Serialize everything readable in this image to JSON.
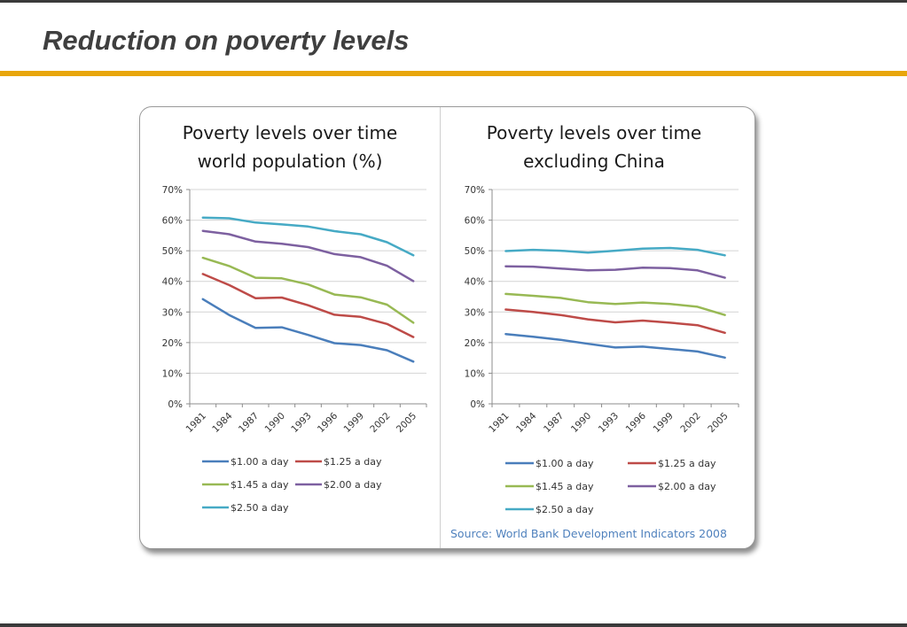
{
  "slide": {
    "title": "Reduction on poverty levels",
    "accent_color": "#e8a60c"
  },
  "source_note": "Source: World Bank Development Indicators 2008",
  "chart_data": [
    {
      "type": "line",
      "title": "Poverty levels over time world population (%)",
      "title_lines": [
        "Poverty levels over time",
        "world population (%)"
      ],
      "x": [
        "1981",
        "1984",
        "1987",
        "1990",
        "1993",
        "1996",
        "1999",
        "2002",
        "2005"
      ],
      "y_ticks": [
        "0%",
        "10%",
        "20%",
        "30%",
        "40%",
        "50%",
        "60%",
        "70%"
      ],
      "ylim": [
        0,
        70
      ],
      "grid": true,
      "legend_position": "bottom",
      "series": [
        {
          "name": "$1.00 a day",
          "color": "#4a7ebb",
          "values": [
            34.2,
            29,
            24.8,
            25,
            22.5,
            19.8,
            19.2,
            17.5,
            13.8
          ]
        },
        {
          "name": "$1.25 a day",
          "color": "#be4b48",
          "values": [
            42.4,
            38.8,
            34.5,
            34.7,
            32.2,
            29.1,
            28.4,
            26.1,
            21.8
          ]
        },
        {
          "name": "$1.45 a day",
          "color": "#98b954",
          "values": [
            47.7,
            45,
            41.2,
            41,
            39,
            35.7,
            34.8,
            32.4,
            26.5
          ]
        },
        {
          "name": "$2.00 a day",
          "color": "#7d60a0",
          "values": [
            56.5,
            55.4,
            53,
            52.3,
            51.2,
            48.9,
            47.9,
            45.1,
            40.1
          ]
        },
        {
          "name": "$2.50 a day",
          "color": "#46aac5",
          "values": [
            60.8,
            60.6,
            59.2,
            58.6,
            57.9,
            56.4,
            55.4,
            52.8,
            48.5
          ]
        }
      ]
    },
    {
      "type": "line",
      "title": "Poverty levels over time excluding China",
      "title_lines": [
        "Poverty levels over time",
        "excluding China"
      ],
      "x": [
        "1981",
        "1984",
        "1987",
        "1990",
        "1993",
        "1996",
        "1999",
        "2002",
        "2005"
      ],
      "y_ticks": [
        "0%",
        "10%",
        "20%",
        "30%",
        "40%",
        "50%",
        "60%",
        "70%"
      ],
      "ylim": [
        0,
        70
      ],
      "grid": true,
      "legend_position": "bottom",
      "series": [
        {
          "name": "$1.00 a day",
          "color": "#4a7ebb",
          "values": [
            22.8,
            21.9,
            20.9,
            19.6,
            18.4,
            18.7,
            17.9,
            17.1,
            15.1
          ]
        },
        {
          "name": "$1.25 a day",
          "color": "#be4b48",
          "values": [
            30.8,
            30,
            29,
            27.6,
            26.6,
            27.2,
            26.5,
            25.7,
            23.2
          ]
        },
        {
          "name": "$1.45 a day",
          "color": "#98b954",
          "values": [
            35.9,
            35.3,
            34.6,
            33.2,
            32.6,
            33.1,
            32.6,
            31.7,
            29
          ]
        },
        {
          "name": "$2.00 a day",
          "color": "#7d60a0",
          "values": [
            44.9,
            44.8,
            44.2,
            43.6,
            43.8,
            44.5,
            44.3,
            43.6,
            41.2
          ]
        },
        {
          "name": "$2.50 a day",
          "color": "#46aac5",
          "values": [
            49.9,
            50.3,
            50,
            49.4,
            50,
            50.7,
            50.9,
            50.3,
            48.5
          ]
        }
      ]
    }
  ]
}
